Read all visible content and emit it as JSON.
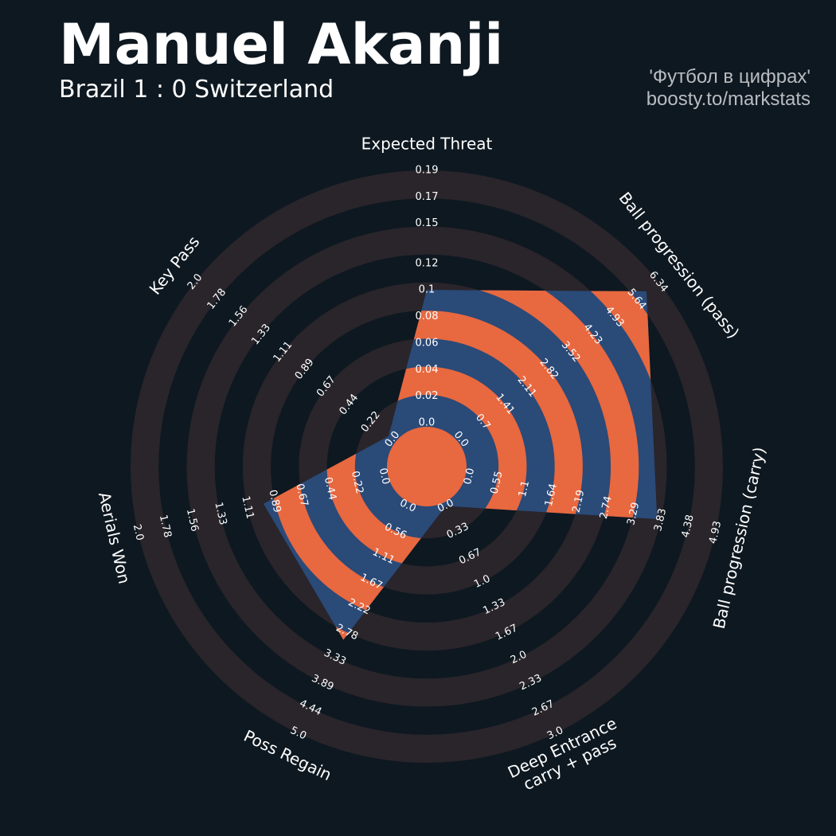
{
  "chart_data": {
    "type": "radar",
    "title": "Manuel Akanji",
    "subtitle": "Brazil 1 : 0 Switzerland",
    "credits": [
      "'Футбол в цифрах'",
      "boosty.to/markstats"
    ],
    "colors": {
      "background": "#0e1820",
      "rings": "#29252b",
      "fill": "#2a4a78",
      "bands": "#e8683f"
    },
    "axes": [
      {
        "name": "Expected Threat",
        "value": 0.1,
        "lim": [
          0,
          0.19
        ],
        "ticks": [
          {
            "value": 0,
            "label": "0.0"
          },
          0.02,
          0.04,
          0.06,
          0.08,
          0.1,
          0.12,
          0.15,
          0.17,
          0.19
        ]
      },
      {
        "name": "Ball progression (pass)",
        "value": 5.96,
        "lim": [
          0,
          6.34
        ],
        "ticks": [
          {
            "value": 0,
            "label": "0.0"
          },
          0.7,
          1.41,
          2.11,
          2.82,
          3.52,
          4.23,
          4.93,
          5.64,
          6.34
        ]
      },
      {
        "name": "Ball progression (carry)",
        "value": 3.76,
        "lim": [
          0,
          4.93
        ],
        "ticks": [
          {
            "value": 0,
            "label": "0.0"
          },
          0.55,
          1.1,
          1.64,
          2.19,
          2.74,
          3.29,
          3.83,
          4.38,
          4.93
        ]
      },
      {
        "name": "Deep Entrance\ncarry + pass",
        "value": 0,
        "lim": [
          0,
          3
        ],
        "ticks": [
          {
            "value": 0,
            "label": "0.0"
          },
          0.33,
          0.67,
          {
            "value": 1,
            "label": "1.0"
          },
          1.33,
          1.67,
          {
            "value": 2,
            "label": "2.0"
          },
          2.33,
          2.67,
          {
            "value": 3,
            "label": "3.0"
          }
        ]
      },
      {
        "name": "Poss Regain",
        "value": 2.94,
        "lim": [
          0,
          5
        ],
        "ticks": [
          {
            "value": 0,
            "label": "0.0"
          },
          0.56,
          1.11,
          1.67,
          2.22,
          2.78,
          3.33,
          3.89,
          4.44,
          {
            "value": 5,
            "label": "5.0"
          }
        ]
      },
      {
        "name": "Aerials Won",
        "value": 0.98,
        "lim": [
          0,
          2
        ],
        "ticks": [
          {
            "value": 0,
            "label": "0.0"
          },
          0.22,
          0.44,
          0.67,
          0.89,
          1.11,
          1.33,
          1.56,
          1.78,
          {
            "value": 2,
            "label": "2.0"
          }
        ]
      },
      {
        "name": "Key Pass",
        "value": 0.04,
        "lim": [
          0,
          2
        ],
        "ticks": [
          {
            "value": 0,
            "label": "0.0"
          },
          0.22,
          0.44,
          0.67,
          0.89,
          1.11,
          1.33,
          1.56,
          1.78,
          {
            "value": 2,
            "label": "2.0"
          }
        ]
      }
    ]
  }
}
